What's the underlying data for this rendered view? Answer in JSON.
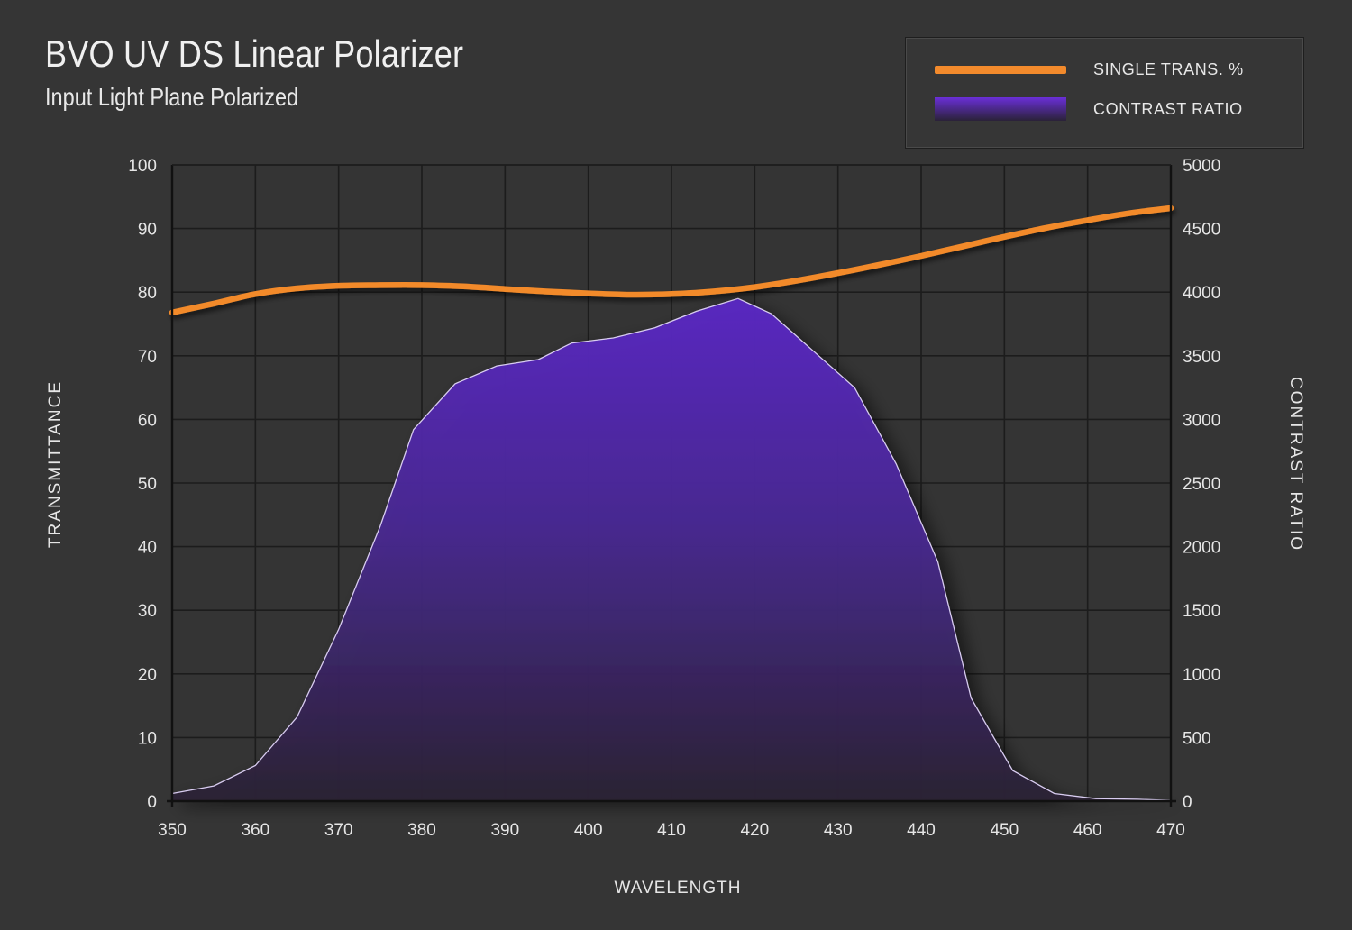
{
  "title": "BVO UV DS Linear Polarizer",
  "subtitle": "Input Light Plane Polarized",
  "legend": {
    "line_label": "SINGLE TRANS. %",
    "area_label": "CONTRAST RATIO"
  },
  "colors": {
    "background": "#353535",
    "line": "#f28a2c",
    "area_top": "#6a2fd8",
    "area_bottom": "#2a2238",
    "grid": "#1c1c1c"
  },
  "chart_data": {
    "type": "line",
    "xlabel": "WAVELENGTH",
    "ylabel_left": "TRANSMITTANCE",
    "ylabel_right": "CONTRAST RATIO",
    "xlim": [
      350,
      470
    ],
    "ylim_left": [
      0,
      100
    ],
    "ylim_right": [
      0,
      5000
    ],
    "x_ticks": [
      "350",
      "360",
      "370",
      "380",
      "390",
      "400",
      "410",
      "420",
      "430",
      "440",
      "450",
      "460",
      "470"
    ],
    "y_ticks_left": [
      "0",
      "10",
      "20",
      "30",
      "40",
      "50",
      "60",
      "70",
      "80",
      "90",
      "100"
    ],
    "y_ticks_right": [
      "0",
      "500",
      "1000",
      "1500",
      "2000",
      "2500",
      "3000",
      "3500",
      "4000",
      "4500",
      "5000"
    ],
    "grid": true,
    "legend_position": "top-right",
    "series": [
      {
        "name": "SINGLE TRANS. %",
        "axis": "left",
        "style": "line",
        "x": [
          350,
          355,
          360,
          365,
          370,
          375,
          380,
          385,
          390,
          395,
          400,
          405,
          410,
          415,
          420,
          425,
          430,
          435,
          440,
          445,
          450,
          455,
          460,
          465,
          470
        ],
        "y": [
          76.8,
          78.2,
          79.7,
          80.6,
          81.0,
          81.1,
          81.1,
          80.9,
          80.5,
          80.1,
          79.8,
          79.6,
          79.7,
          80.1,
          80.8,
          81.8,
          83.0,
          84.3,
          85.7,
          87.2,
          88.7,
          90.1,
          91.3,
          92.4,
          93.2
        ]
      },
      {
        "name": "CONTRAST RATIO",
        "axis": "right",
        "style": "area",
        "x": [
          350,
          355,
          360,
          365,
          370,
          375,
          379,
          384,
          389,
          394,
          398,
          403,
          408,
          413,
          418,
          422,
          427,
          432,
          437,
          442,
          446,
          451,
          456,
          461,
          466,
          470
        ],
        "y": [
          60,
          120,
          280,
          660,
          1350,
          2160,
          2920,
          3280,
          3420,
          3470,
          3600,
          3640,
          3720,
          3850,
          3950,
          3830,
          3540,
          3250,
          2650,
          1880,
          810,
          240,
          60,
          20,
          15,
          5
        ]
      }
    ]
  }
}
